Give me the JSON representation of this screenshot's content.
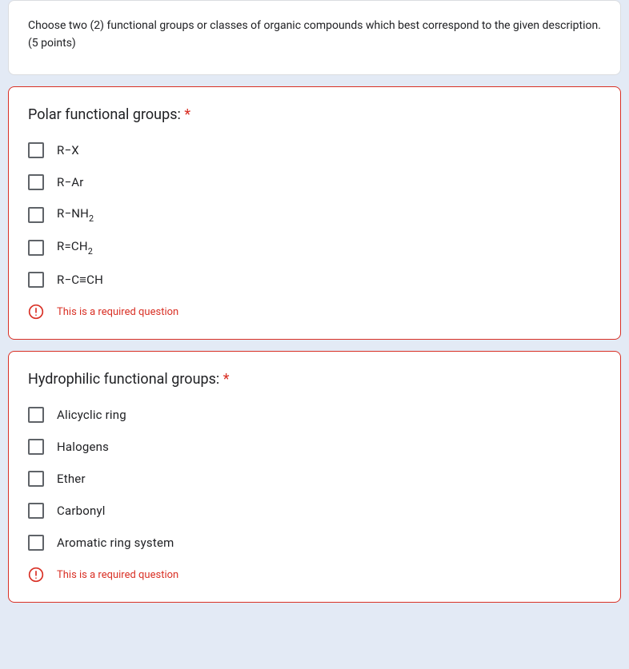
{
  "colors": {
    "background": "#e3eaf5",
    "card_bg": "#ffffff",
    "border_default": "#dadce0",
    "border_error": "#d93025",
    "text": "#202124",
    "checkbox_border": "#5f6368",
    "error": "#d93025"
  },
  "intro": {
    "text": "Choose two (2) functional groups or classes of organic compounds which best correspond to the given description. (5 points)"
  },
  "questions": [
    {
      "title": "Polar functional groups:",
      "required": true,
      "options": [
        {
          "label_html": "R−X"
        },
        {
          "label_html": "R−Ar"
        },
        {
          "label_html": "R−NH<span class=\"sub2\">2</span>"
        },
        {
          "label_html": "R=CH<span class=\"sub2\">2</span>"
        },
        {
          "label_html": "R−C≡CH"
        }
      ],
      "error": "This is a required question"
    },
    {
      "title": "Hydrophilic functional groups:",
      "required": true,
      "options": [
        {
          "label_html": "Alicyclic ring"
        },
        {
          "label_html": "Halogens"
        },
        {
          "label_html": "Ether"
        },
        {
          "label_html": "Carbonyl"
        },
        {
          "label_html": "Aromatic ring system"
        }
      ],
      "error": "This is a required question"
    }
  ],
  "typography": {
    "intro_fontsize": 14,
    "title_fontsize": 18,
    "option_fontsize": 15,
    "error_fontsize": 13
  }
}
